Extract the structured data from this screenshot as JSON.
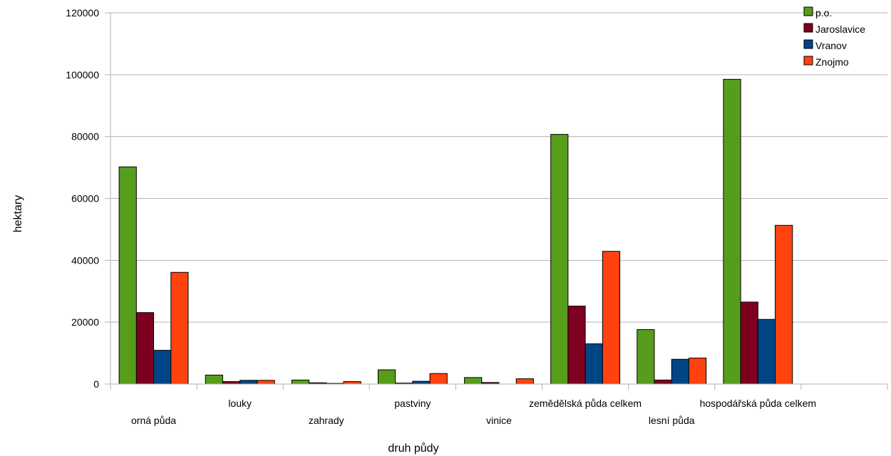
{
  "chart_data": {
    "type": "bar",
    "xlabel": "druh půdy",
    "ylabel": "hektary",
    "ylim": [
      0,
      120000
    ],
    "yticks": [
      0,
      20000,
      40000,
      60000,
      80000,
      100000,
      120000
    ],
    "grid": true,
    "legend_position": "top-right",
    "categories": [
      "orná půda",
      "louky",
      "zahrady",
      "pastviny",
      "vinice",
      "zemědělská půda celkem",
      "lesní půda",
      "hospodářská půda celkem",
      ""
    ],
    "series": [
      {
        "name": "p.o.",
        "color": "#579d1c",
        "values": [
          70200,
          2900,
          1300,
          4600,
          2100,
          80700,
          17600,
          98500,
          0
        ]
      },
      {
        "name": "Jaroslavice",
        "color": "#7e0021",
        "values": [
          23100,
          800,
          400,
          300,
          500,
          25200,
          1300,
          26500,
          0
        ]
      },
      {
        "name": "Vranov",
        "color": "#004586",
        "values": [
          10900,
          1200,
          200,
          900,
          0,
          13000,
          8000,
          20900,
          0
        ]
      },
      {
        "name": "Znojmo",
        "color": "#ff420e",
        "values": [
          36100,
          1200,
          800,
          3400,
          1700,
          42900,
          8400,
          51300,
          0
        ]
      }
    ]
  }
}
